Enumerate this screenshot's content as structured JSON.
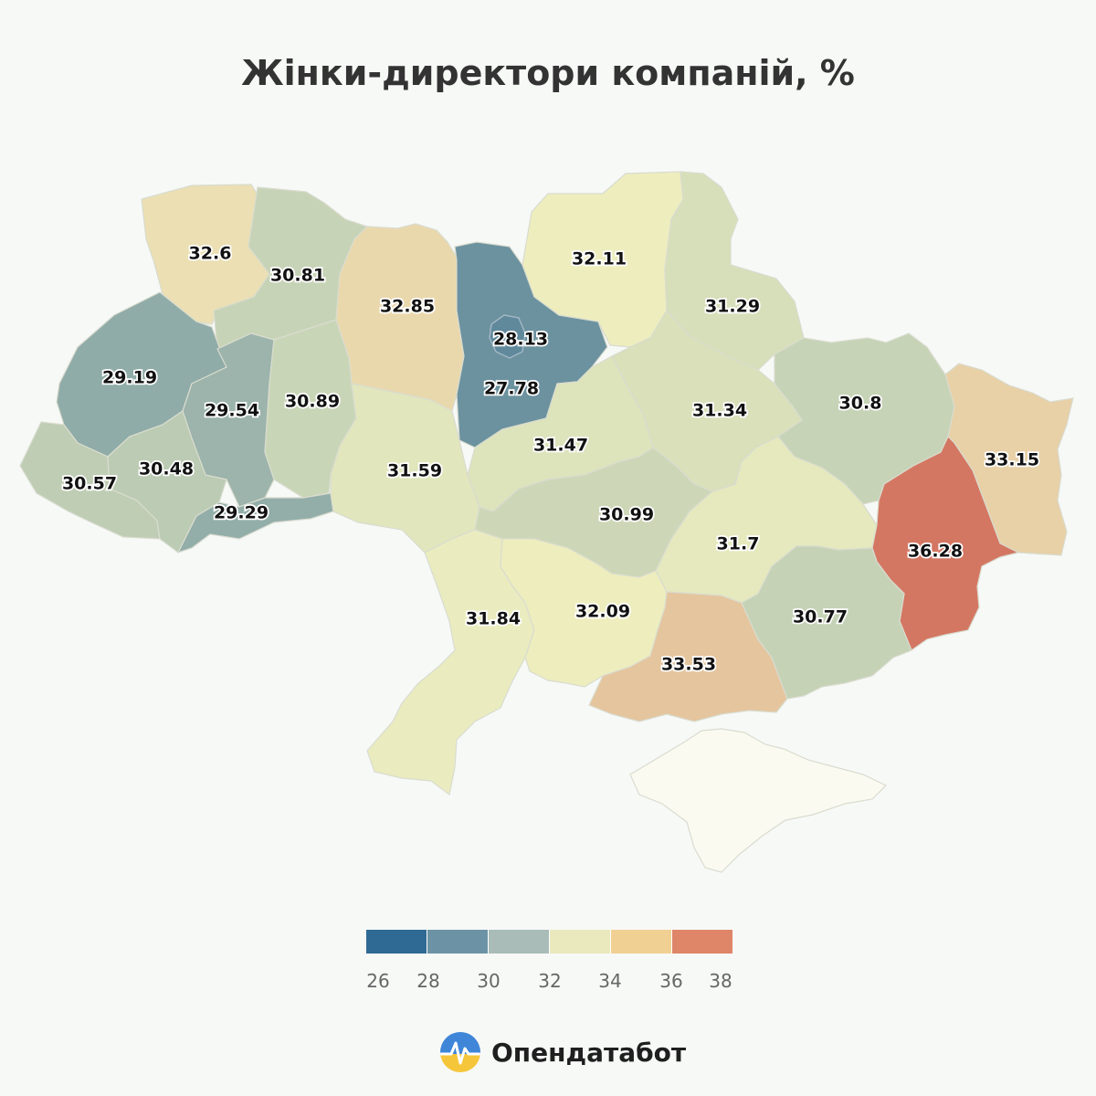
{
  "title": "Жінки-директори компаній, %",
  "brand": "Опендатабот",
  "legend": {
    "ticks": [
      "26",
      "28",
      "30",
      "32",
      "34",
      "36",
      "38"
    ],
    "colors": [
      "#2e6a94",
      "#6c93a5",
      "#a9bcb8",
      "#eae9be",
      "#f1d093",
      "#df8568",
      "#c9473c"
    ]
  },
  "chart_data": {
    "type": "choropleth",
    "title": "Жінки-директори компаній, %",
    "color_scale": {
      "min": 26,
      "max": 38,
      "from": "#245e8d",
      "mid": "#eff0c0",
      "to": "#c9473c"
    },
    "values": [
      "32.6",
      "30.81",
      "32.85",
      "28.13",
      "27.78",
      "32.11",
      "31.29",
      "29.19",
      "29.54",
      "30.89",
      "30.57",
      "30.48",
      "29.29",
      "31.59",
      "31.47",
      "31.34",
      "30.8",
      "33.15",
      "30.99",
      "31.7",
      "36.28",
      "31.84",
      "32.09",
      "33.53",
      "30.77"
    ]
  }
}
